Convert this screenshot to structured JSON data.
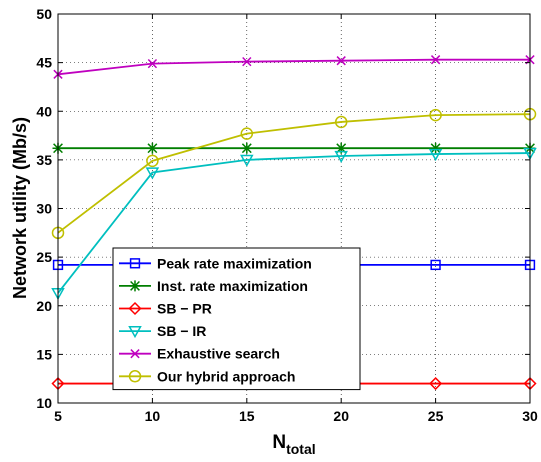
{
  "chart_data": {
    "type": "line",
    "title": "",
    "xlabel": "N",
    "xlabel_subscript": "total",
    "ylabel": "Network utility (Mb/s)",
    "xlim": [
      5,
      30
    ],
    "ylim": [
      10,
      50
    ],
    "xticks": [
      5,
      10,
      15,
      20,
      25,
      30
    ],
    "yticks": [
      10,
      15,
      20,
      25,
      30,
      35,
      40,
      45,
      50
    ],
    "grid": true,
    "legend_position": "lower-center",
    "x": [
      5,
      10,
      15,
      20,
      25,
      30
    ],
    "series": [
      {
        "name": "Peak rate maximization",
        "color": "#0000ff",
        "marker": "square",
        "values": [
          24.2,
          24.2,
          24.2,
          24.2,
          24.2,
          24.2
        ]
      },
      {
        "name": "Inst. rate maximization",
        "color": "#007f00",
        "marker": "star",
        "values": [
          36.2,
          36.2,
          36.2,
          36.2,
          36.2,
          36.2
        ]
      },
      {
        "name": "SB − PR",
        "color": "#ff0000",
        "marker": "diamond",
        "values": [
          12.0,
          12.0,
          12.0,
          12.0,
          12.0,
          12.0
        ]
      },
      {
        "name": "SB − IR",
        "color": "#00bfbf",
        "marker": "triangle-down",
        "values": [
          21.3,
          33.7,
          35.0,
          35.4,
          35.6,
          35.7
        ]
      },
      {
        "name": "Exhaustive search",
        "color": "#bf00bf",
        "marker": "x",
        "values": [
          43.8,
          44.9,
          45.1,
          45.2,
          45.3,
          45.3
        ]
      },
      {
        "name": "Our hybrid approach",
        "color": "#bfbf00",
        "marker": "circle",
        "values": [
          27.5,
          34.9,
          37.7,
          38.9,
          39.6,
          39.7
        ]
      }
    ]
  }
}
